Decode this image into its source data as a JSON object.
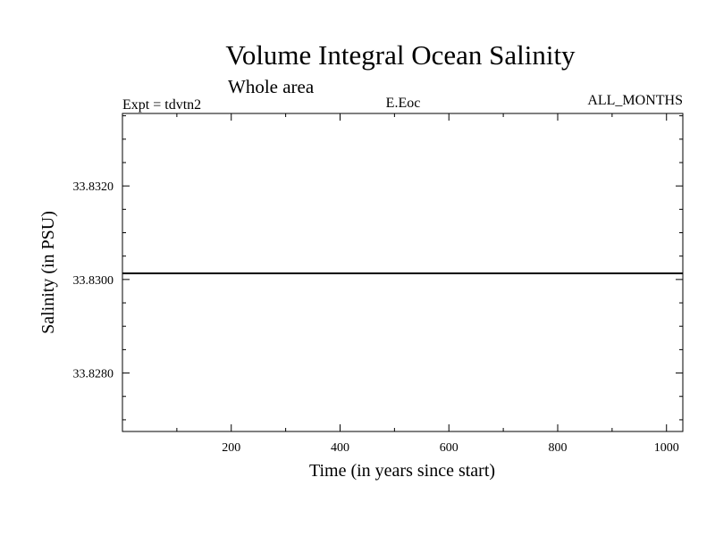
{
  "chart_data": {
    "type": "line",
    "title": "Volume Integral Ocean Salinity",
    "subtitle": "Whole area",
    "annotations": {
      "left": "Expt = tdvtn2",
      "center": "E.Eoc",
      "right": "ALL_MONTHS"
    },
    "xlabel": "Time (in years since start)",
    "ylabel": "Salinity (in PSU)",
    "xlim": [
      0,
      1030
    ],
    "ylim": [
      33.82675,
      33.83355
    ],
    "x_major_ticks": [
      200,
      400,
      600,
      800,
      1000
    ],
    "x_tick_labels": [
      "200",
      "400",
      "600",
      "800",
      "1000"
    ],
    "x_minor_step": 100,
    "y_major_ticks": [
      33.832,
      33.83,
      33.828
    ],
    "y_tick_labels": [
      "33.8320",
      "33.8300",
      "33.8280"
    ],
    "y_minor_step": 0.0005,
    "grid": false,
    "series": [
      {
        "name": "Salinity",
        "x": [
          0,
          100,
          200,
          300,
          400,
          500,
          600,
          700,
          800,
          900,
          1000,
          1030
        ],
        "values": [
          33.83013,
          33.83013,
          33.83013,
          33.83013,
          33.83013,
          33.83013,
          33.83013,
          33.83013,
          33.83013,
          33.83013,
          33.83013,
          33.83013
        ]
      }
    ]
  }
}
